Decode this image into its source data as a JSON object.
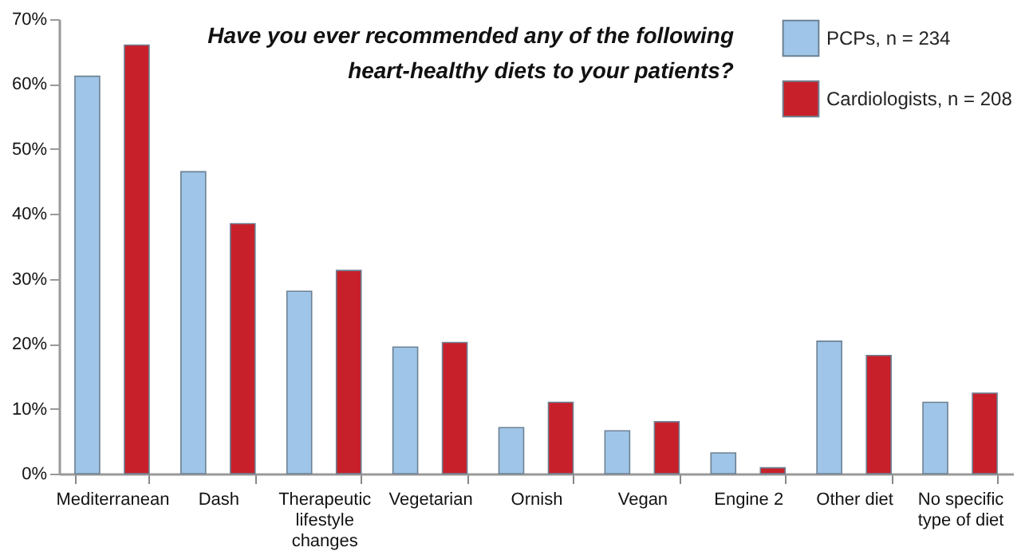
{
  "chart_data": {
    "type": "bar",
    "title": "Have you ever recommended any of the following heart-healthy diets to your patients?",
    "categories": [
      "Mediterranean",
      "Dash",
      "Therapeutic lifestyle changes",
      "Vegetarian",
      "Ornish",
      "Vegan",
      "Engine 2",
      "Other diet",
      "No specific type of diet"
    ],
    "series": [
      {
        "name": "PCPs, n = 234",
        "color": "#9fc5e8",
        "values": [
          61.2,
          46.5,
          28.1,
          19.5,
          7.1,
          6.6,
          3.2,
          20.4,
          11.0
        ]
      },
      {
        "name": "Cardiologists, n = 208",
        "color": "#c8202a",
        "values": [
          66.0,
          38.5,
          31.3,
          20.2,
          11.0,
          8.0,
          0.9,
          18.2,
          12.4
        ]
      }
    ],
    "ylim": [
      0,
      70
    ],
    "yticks": [
      {
        "value": 0,
        "label": "0%"
      },
      {
        "value": 10,
        "label": "10%"
      },
      {
        "value": 20,
        "label": "20%"
      },
      {
        "value": 30,
        "label": "30%"
      },
      {
        "value": 40,
        "label": "40%"
      },
      {
        "value": 50,
        "label": "50%"
      },
      {
        "value": 60,
        "label": "60%"
      },
      {
        "value": 70,
        "label": "70%"
      }
    ],
    "grid": false,
    "legend": "top right"
  }
}
